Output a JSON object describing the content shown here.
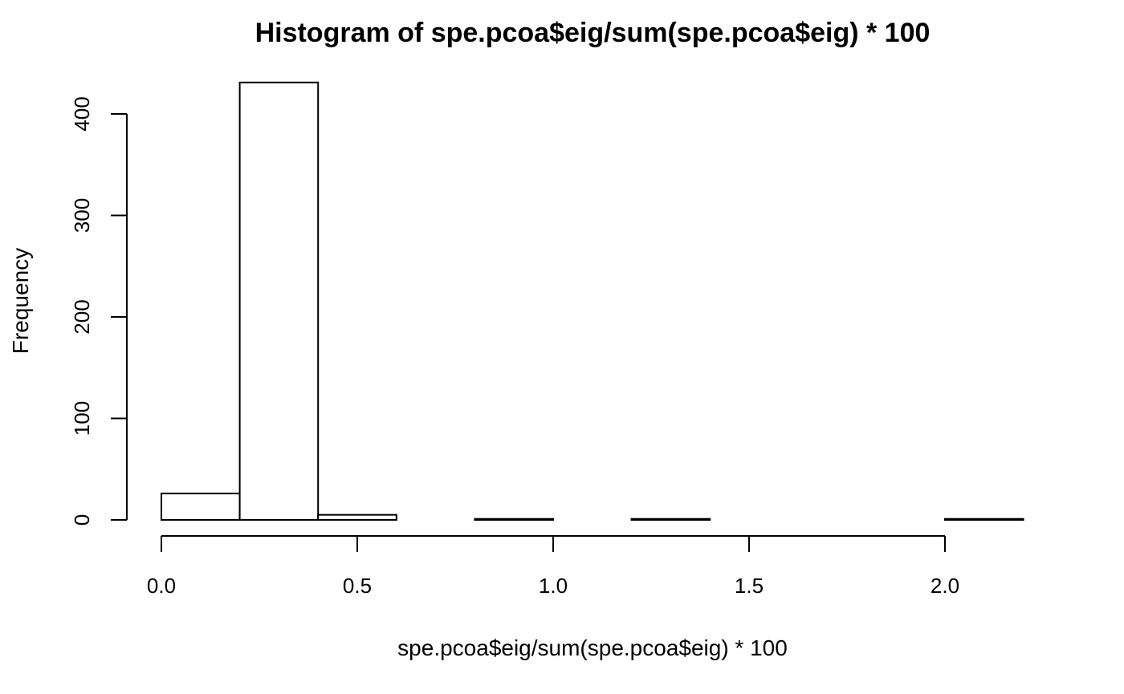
{
  "chart_data": {
    "type": "bar",
    "title": "Histogram of spe.pcoa$eig/sum(spe.pcoa$eig) * 100",
    "xlabel": "spe.pcoa$eig/sum(spe.pcoa$eig) * 100",
    "ylabel": "Frequency",
    "bin_edges": [
      0.0,
      0.2,
      0.4,
      0.6,
      0.8,
      1.0,
      1.2,
      1.4,
      1.6,
      1.8,
      2.0,
      2.2
    ],
    "values": [
      26,
      431,
      5,
      0,
      1,
      0,
      1,
      0,
      0,
      0,
      1
    ],
    "xlim": [
      0.0,
      2.2
    ],
    "ylim": [
      0,
      431
    ],
    "x_ticks": [
      0.0,
      0.5,
      1.0,
      1.5,
      2.0
    ],
    "x_tick_labels": [
      "0.0",
      "0.5",
      "1.0",
      "1.5",
      "2.0"
    ],
    "y_ticks": [
      0,
      100,
      200,
      300,
      400
    ],
    "y_tick_labels": [
      "0",
      "100",
      "200",
      "300",
      "400"
    ],
    "grid": false,
    "legend": "none"
  }
}
